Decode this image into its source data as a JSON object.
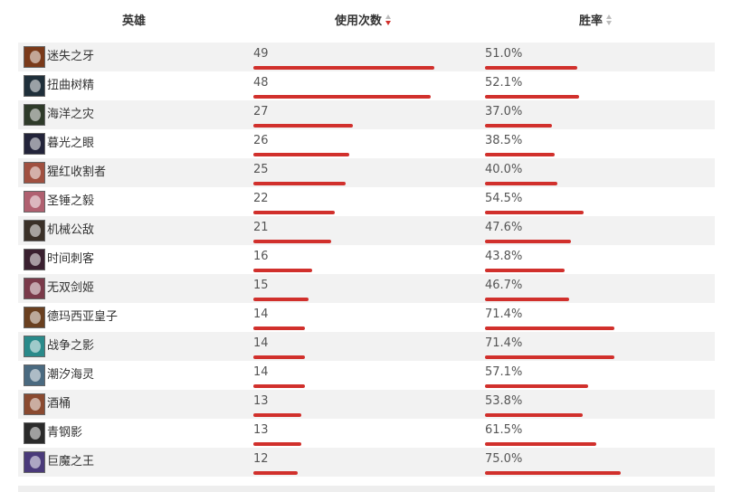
{
  "header": {
    "hero_label": "英雄",
    "picks_label": "使用次数",
    "winrate_label": "胜率"
  },
  "colors": {
    "bar": "#d1302c",
    "row_alt": "#f2f2f2",
    "sort_active": "#d1302c",
    "sort_inactive": "#bbbbbb"
  },
  "sort": {
    "column": "picks",
    "direction": "desc"
  },
  "rows": [
    {
      "name": "迷失之牙",
      "picks": "49",
      "winrate": "51.0%",
      "avatar_color": "#7a3a1a"
    },
    {
      "name": "扭曲树精",
      "picks": "48",
      "winrate": "52.1%",
      "avatar_color": "#1f2f3a"
    },
    {
      "name": "海洋之灾",
      "picks": "27",
      "winrate": "37.0%",
      "avatar_color": "#2f3b2a"
    },
    {
      "name": "暮光之眼",
      "picks": "26",
      "winrate": "38.5%",
      "avatar_color": "#23243a"
    },
    {
      "name": "猩红收割者",
      "picks": "25",
      "winrate": "40.0%",
      "avatar_color": "#a05040"
    },
    {
      "name": "圣锤之毅",
      "picks": "22",
      "winrate": "54.5%",
      "avatar_color": "#b06070"
    },
    {
      "name": "机械公敌",
      "picks": "21",
      "winrate": "47.6%",
      "avatar_color": "#3a3028"
    },
    {
      "name": "时间刺客",
      "picks": "16",
      "winrate": "43.8%",
      "avatar_color": "#3a2030"
    },
    {
      "name": "无双剑姬",
      "picks": "15",
      "winrate": "46.7%",
      "avatar_color": "#7a3a4a"
    },
    {
      "name": "德玛西亚皇子",
      "picks": "14",
      "winrate": "71.4%",
      "avatar_color": "#6a4020"
    },
    {
      "name": "战争之影",
      "picks": "14",
      "winrate": "71.4%",
      "avatar_color": "#2a8a8a"
    },
    {
      "name": "潮汐海灵",
      "picks": "14",
      "winrate": "57.1%",
      "avatar_color": "#4a6a80"
    },
    {
      "name": "酒桶",
      "picks": "13",
      "winrate": "53.8%",
      "avatar_color": "#8a4a30"
    },
    {
      "name": "青钢影",
      "picks": "13",
      "winrate": "61.5%",
      "avatar_color": "#2a2a2a"
    },
    {
      "name": "巨魔之王",
      "picks": "12",
      "winrate": "75.0%",
      "avatar_color": "#4a3a7a"
    }
  ]
}
